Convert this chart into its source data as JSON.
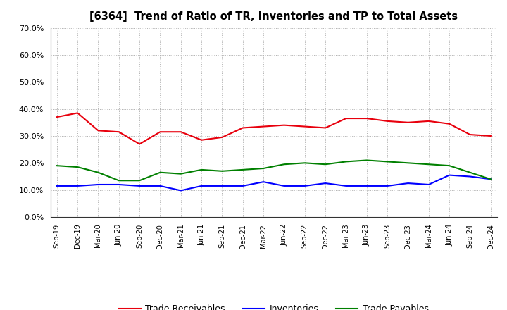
{
  "title": "[6364]  Trend of Ratio of TR, Inventories and TP to Total Assets",
  "x_labels": [
    "Sep-19",
    "Dec-19",
    "Mar-20",
    "Jun-20",
    "Sep-20",
    "Dec-20",
    "Mar-21",
    "Jun-21",
    "Sep-21",
    "Dec-21",
    "Mar-22",
    "Jun-22",
    "Sep-22",
    "Dec-22",
    "Mar-23",
    "Jun-23",
    "Sep-23",
    "Dec-23",
    "Mar-24",
    "Jun-24",
    "Sep-24",
    "Dec-24"
  ],
  "trade_receivables": [
    0.37,
    0.385,
    0.32,
    0.315,
    0.27,
    0.315,
    0.315,
    0.285,
    0.295,
    0.33,
    0.335,
    0.34,
    0.335,
    0.33,
    0.365,
    0.365,
    0.355,
    0.35,
    0.355,
    0.345,
    0.305,
    0.3
  ],
  "inventories": [
    0.115,
    0.115,
    0.12,
    0.12,
    0.115,
    0.115,
    0.098,
    0.115,
    0.115,
    0.115,
    0.13,
    0.115,
    0.115,
    0.125,
    0.115,
    0.115,
    0.115,
    0.125,
    0.12,
    0.155,
    0.15,
    0.14
  ],
  "trade_payables": [
    0.19,
    0.185,
    0.165,
    0.135,
    0.135,
    0.165,
    0.16,
    0.175,
    0.17,
    0.175,
    0.18,
    0.195,
    0.2,
    0.195,
    0.205,
    0.21,
    0.205,
    0.2,
    0.195,
    0.19,
    0.165,
    0.14
  ],
  "ylim": [
    0.0,
    0.7
  ],
  "yticks": [
    0.0,
    0.1,
    0.2,
    0.3,
    0.4,
    0.5,
    0.6,
    0.7
  ],
  "color_tr": "#e8000d",
  "color_inv": "#0000ff",
  "color_tp": "#008000",
  "background_color": "#ffffff",
  "grid_color": "#b0b0b0",
  "legend_labels": [
    "Trade Receivables",
    "Inventories",
    "Trade Payables"
  ]
}
